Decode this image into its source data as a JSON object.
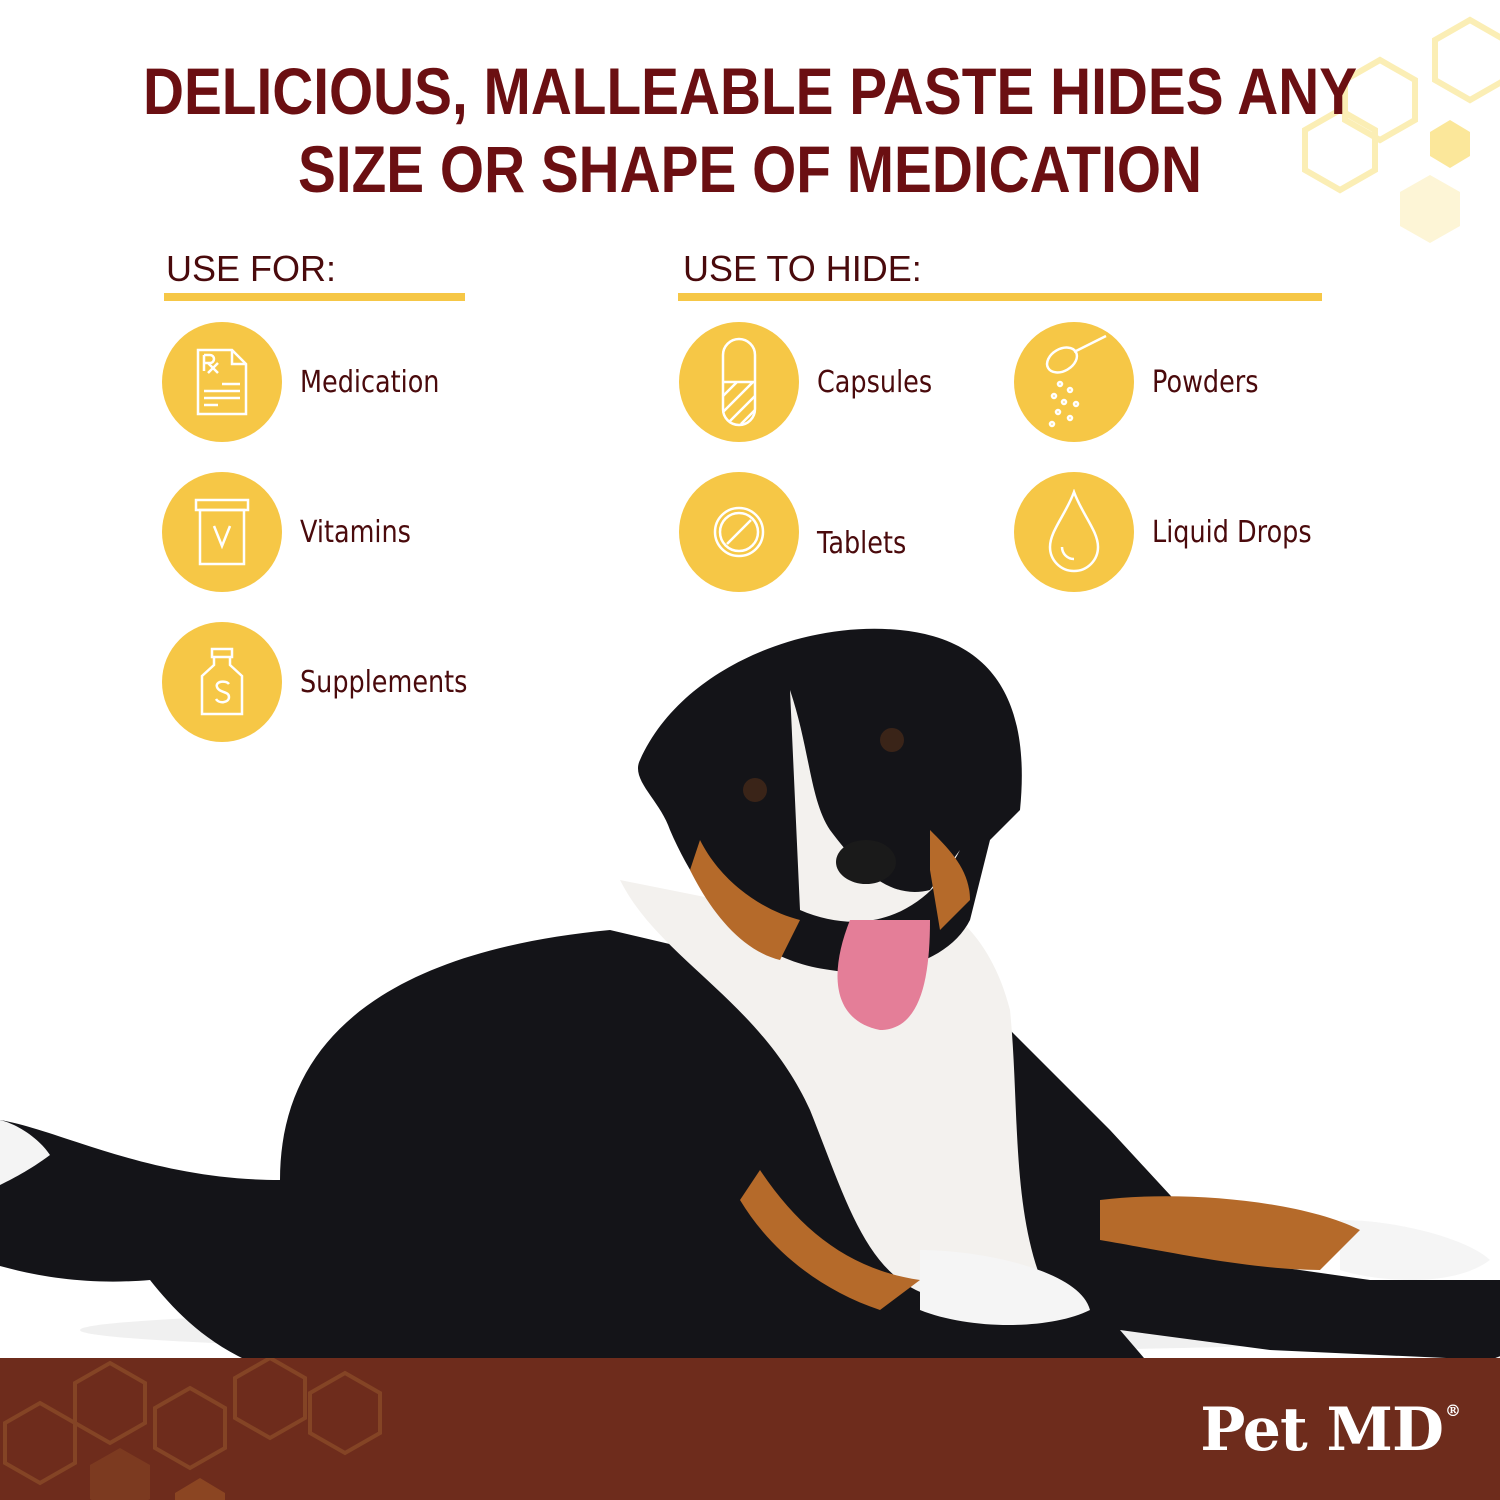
{
  "headline": {
    "line1": "DELICIOUS, MALLEABLE PASTE HIDES ANY",
    "line2": "SIZE OR SHAPE OF MEDICATION"
  },
  "use_for": {
    "heading": "USE FOR:",
    "items": [
      {
        "label": "Medication",
        "icon": "prescription-icon"
      },
      {
        "label": "Vitamins",
        "icon": "vitamin-bottle-icon"
      },
      {
        "label": "Supplements",
        "icon": "supplement-bottle-icon"
      }
    ]
  },
  "use_to_hide": {
    "heading": "USE TO HIDE:",
    "items": [
      {
        "label": "Capsules",
        "icon": "capsule-icon"
      },
      {
        "label": "Powders",
        "icon": "powder-spoon-icon"
      },
      {
        "label": "Tablets",
        "icon": "tablet-icon"
      },
      {
        "label": "Liquid Drops",
        "icon": "drop-icon"
      }
    ]
  },
  "brand": {
    "name": "Pet MD",
    "registered": "®"
  },
  "colors": {
    "title": "#6b0f12",
    "accent": "#f6c746",
    "footer": "#6e2c1c"
  }
}
